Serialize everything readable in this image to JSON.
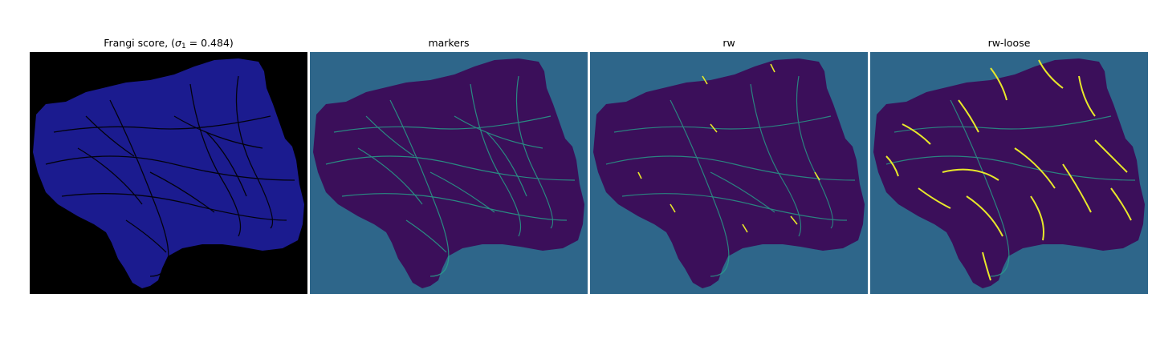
{
  "panels": [
    {
      "id": "frangi",
      "title_prefix": "Frangi score, (",
      "title_symbol": "σ",
      "title_subscript": "1",
      "title_suffix": " = 0.484)"
    },
    {
      "id": "markers",
      "title": "markers"
    },
    {
      "id": "rw",
      "title": "rw"
    },
    {
      "id": "rw-loose",
      "title": "rw-loose"
    }
  ],
  "colors": {
    "frangi_background": "#000000",
    "frangi_tissue": "#1b1b8f",
    "segmentation_background": "#2e668a",
    "tissue_dark": "#3b0f5a",
    "marker_teal": "#27a08a",
    "vessel_yellow": "#e8e82a"
  }
}
